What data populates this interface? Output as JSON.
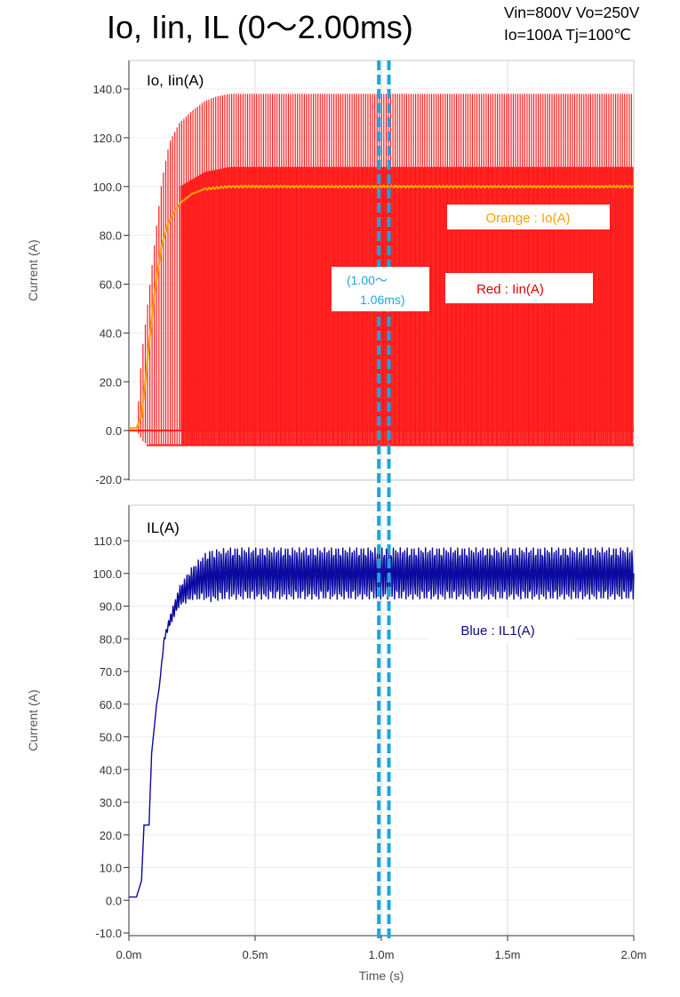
{
  "title": "Io, Iin, IL (0〜2.00ms)",
  "conditions": [
    "Vin=800V Vo=250V",
    "Io=100A Tj=100℃"
  ],
  "annotation": [
    "(1.00〜",
    "1.06ms)"
  ],
  "colors": {
    "red": "#ff1a1a",
    "orange": "#ffa000",
    "blue": "#0a0aa0",
    "marker": "#1aa6e0",
    "grid": "#d8d8d8",
    "legend_red": "#e00000",
    "legend_orange": "#ffa000",
    "legend_blue": "#0a0a80"
  },
  "chart_data": [
    {
      "type": "line",
      "panel_title": "Io, Iin(A)",
      "ylabel": "Current (A)",
      "xlabel": "",
      "xlim": [
        0,
        2.0
      ],
      "ylim": [
        -20,
        140
      ],
      "yticks": [
        "140.0",
        "120.0",
        "100.0",
        "80.0",
        "60.0",
        "40.0",
        "20.0",
        "0.0",
        "-20.0"
      ],
      "grid": true,
      "series": [
        {
          "name": "Red : Iin(A)",
          "color": "red",
          "description": "switching current pulses, alternating between ~0 and the envelope",
          "upper_envelope": {
            "x": [
              0.0,
              0.03,
              0.05,
              0.07,
              0.1,
              0.13,
              0.16,
              0.2,
              0.25,
              0.3,
              0.35,
              0.4,
              0.5,
              1.0,
              2.0
            ],
            "y": [
              0,
              0,
              30,
              48,
              75,
              102,
              118,
              126,
              131,
              135,
              137,
              138,
              138,
              138,
              138
            ]
          },
          "lower_band": {
            "x": [
              0.0,
              0.03,
              0.06,
              0.1,
              0.2,
              2.0
            ],
            "y": [
              0,
              0,
              -5,
              -6,
              -6,
              -6
            ]
          },
          "plateau_band": {
            "x": [
              0.2,
              0.3,
              0.4,
              2.0
            ],
            "y": [
              100,
              106,
              108,
              108
            ]
          }
        },
        {
          "name": "Orange : Io(A)",
          "color": "orange",
          "x": [
            0.0,
            0.03,
            0.05,
            0.07,
            0.1,
            0.13,
            0.16,
            0.2,
            0.25,
            0.3,
            0.4,
            0.5,
            1.0,
            1.5,
            2.0
          ],
          "y": [
            1,
            1,
            6,
            25,
            55,
            76,
            86,
            93,
            97,
            99,
            100,
            100,
            100,
            100,
            100
          ]
        }
      ]
    },
    {
      "type": "line",
      "panel_title": "IL(A)",
      "ylabel": "Current (A)",
      "xlabel": "Time (s)",
      "xlim": [
        0,
        2.0
      ],
      "ylim": [
        -10,
        110
      ],
      "xticks": [
        "0.0m",
        "0.5m",
        "1.0m",
        "1.5m",
        "2.0m"
      ],
      "yticks": [
        "110.0",
        "100.0",
        "90.0",
        "80.0",
        "70.0",
        "60.0",
        "50.0",
        "40.0",
        "30.0",
        "20.0",
        "10.0",
        "0.0",
        "-10.0"
      ],
      "grid": true,
      "series": [
        {
          "name": "Blue : IL1(A)",
          "color": "blue",
          "x": [
            0.0,
            0.03,
            0.05,
            0.06,
            0.08,
            0.09,
            0.11,
            0.12,
            0.14,
            0.16,
            0.2,
            0.25,
            0.3,
            0.4,
            1.0,
            2.0
          ],
          "y": [
            1,
            1,
            6,
            23,
            23,
            45,
            60,
            65,
            80,
            85,
            93,
            97,
            99,
            100,
            100,
            100
          ],
          "ripple_high": 108,
          "ripple_low": 92
        }
      ]
    }
  ],
  "marker_lines": {
    "x": [
      0.99,
      1.03
    ]
  }
}
